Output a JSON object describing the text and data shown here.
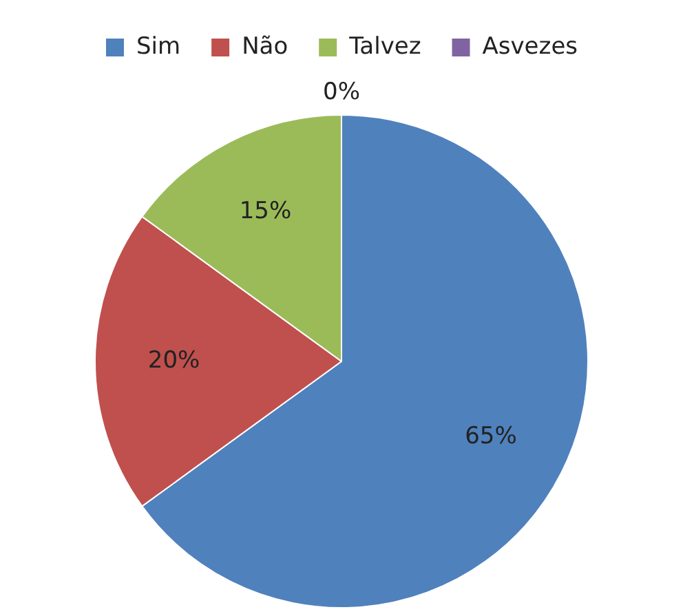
{
  "chart_data": {
    "type": "pie",
    "categories": [
      "Sim",
      "Não",
      "Talvez",
      "Asvezes"
    ],
    "values": [
      65,
      20,
      15,
      0
    ],
    "colors": [
      "#4f81bd",
      "#c0504d",
      "#9bbb59",
      "#8064a2"
    ],
    "value_labels": [
      "65%",
      "20%",
      "15%",
      "0%"
    ],
    "legend": "top"
  }
}
